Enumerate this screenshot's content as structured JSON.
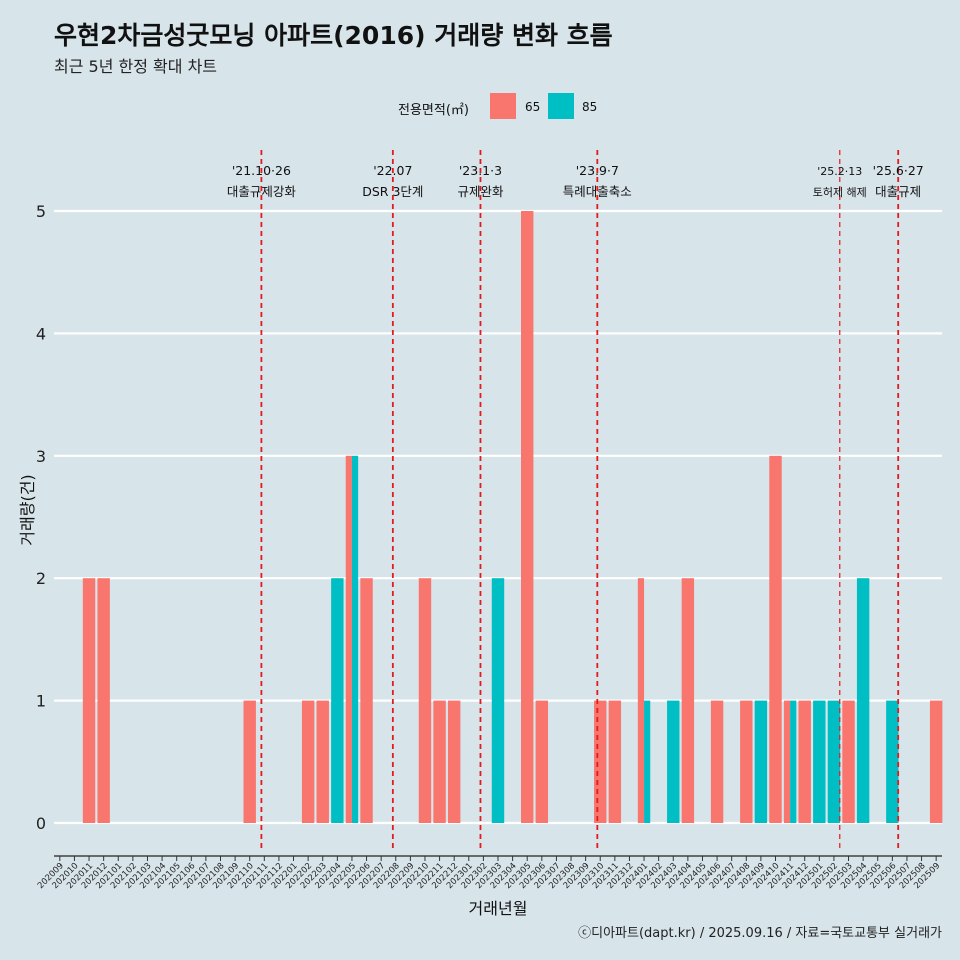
{
  "title": "우현2차금성굿모닝 아파트(2016) 거래량 변화 흐름",
  "subtitle": "최근 5년 한정 확대 차트",
  "caption": "ⓒ디아파트(dapt.kr) / 2025.09.16 / 자료=국토교통부 실거래가",
  "legend": {
    "title": "전용면적(㎡)",
    "items": [
      {
        "label": "65",
        "color": "#f8766d"
      },
      {
        "label": "85",
        "color": "#00bfc4"
      }
    ]
  },
  "chart_data": {
    "type": "bar",
    "title": "우현2차금성굿모닝 아파트(2016) 거래량 변화 흐름",
    "xlabel": "거래년월",
    "ylabel": "거래량(건)",
    "ylim": [
      -0.22,
      5.45
    ],
    "yticks": [
      0,
      1,
      2,
      3,
      4,
      5
    ],
    "categories": [
      "202009",
      "202010",
      "202011",
      "202012",
      "202101",
      "202102",
      "202103",
      "202104",
      "202105",
      "202106",
      "202107",
      "202108",
      "202109",
      "202110",
      "202111",
      "202112",
      "202201",
      "202202",
      "202203",
      "202204",
      "202205",
      "202206",
      "202207",
      "202208",
      "202209",
      "202210",
      "202211",
      "202212",
      "202301",
      "202302",
      "202303",
      "202304",
      "202305",
      "202306",
      "202307",
      "202308",
      "202309",
      "202310",
      "202311",
      "202312",
      "202401",
      "202402",
      "202403",
      "202404",
      "202405",
      "202406",
      "202407",
      "202408",
      "202409",
      "202410",
      "202411",
      "202412",
      "202501",
      "202502",
      "202503",
      "202504",
      "202505",
      "202506",
      "202507",
      "202508",
      "202509"
    ],
    "series": [
      {
        "name": "65",
        "color": "#f8766d",
        "values": [
          0,
          0,
          2,
          2,
          0,
          0,
          0,
          0,
          0,
          0,
          0,
          0,
          0,
          1,
          0,
          0,
          0,
          1,
          1,
          0,
          3,
          2,
          0,
          0,
          0,
          2,
          1,
          1,
          0,
          0,
          0,
          0,
          5,
          1,
          0,
          0,
          0,
          1,
          1,
          0,
          2,
          0,
          0,
          2,
          0,
          1,
          0,
          1,
          0,
          3,
          1,
          1,
          0,
          0,
          1,
          0,
          0,
          0,
          0,
          0,
          1
        ]
      },
      {
        "name": "85",
        "color": "#00bfc4",
        "values": [
          0,
          0,
          0,
          0,
          0,
          0,
          0,
          0,
          0,
          0,
          0,
          0,
          0,
          0,
          0,
          0,
          0,
          0,
          0,
          2,
          3,
          0,
          0,
          0,
          0,
          0,
          0,
          0,
          0,
          0,
          2,
          0,
          0,
          0,
          0,
          0,
          0,
          0,
          0,
          0,
          1,
          0,
          1,
          0,
          0,
          0,
          0,
          0,
          1,
          0,
          1,
          0,
          1,
          1,
          0,
          2,
          0,
          1,
          0,
          0,
          0
        ]
      }
    ],
    "events": [
      {
        "date": "'21.10·26",
        "label": "대출규제강화",
        "month_index": 13.8,
        "small": false
      },
      {
        "date": "'22.07",
        "label": "DSR 3단계",
        "month_index": 22.8,
        "small": false
      },
      {
        "date": "'23.1·3",
        "label": "규제완화",
        "month_index": 28.8,
        "small": false
      },
      {
        "date": "'23.9·7",
        "label": "특례대출축소",
        "month_index": 36.8,
        "small": false
      },
      {
        "date": "'25.2·13",
        "label": "토허제 해제",
        "month_index": 53.4,
        "small": true
      },
      {
        "date": "'25.6·27",
        "label": "대출규제",
        "month_index": 57.4,
        "small": false
      }
    ],
    "event_line_color": "#e41a1c"
  }
}
